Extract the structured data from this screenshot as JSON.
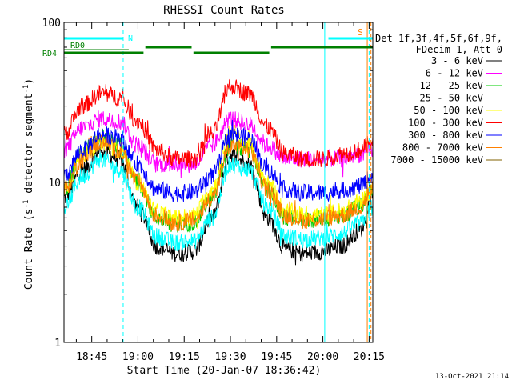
{
  "chart_data": {
    "type": "line",
    "title": "RHESSI Count Rates",
    "xlabel": "Start Time (20-Jan-07 18:36:42)",
    "ylabel": "Count Rate (s",
    "ylabel_sup1": "-1",
    "ylabel_mid": " detector segment",
    "ylabel_sup2": "-1",
    "ylabel_end": ")",
    "y_scale": "log",
    "ylim": [
      1,
      100
    ],
    "xlim_minutes": [
      18.6,
      20.27
    ],
    "y_ticks": [
      {
        "value": 1,
        "label": "1"
      },
      {
        "value": 10,
        "label": "10"
      },
      {
        "value": 100,
        "label": "100"
      }
    ],
    "x_ticks": [
      {
        "value": 18.75,
        "label": "18:45"
      },
      {
        "value": 19.0,
        "label": "19:00"
      },
      {
        "value": 19.25,
        "label": "19:15"
      },
      {
        "value": 19.5,
        "label": "19:30"
      },
      {
        "value": 19.75,
        "label": "19:45"
      },
      {
        "value": 20.0,
        "label": "20:00"
      },
      {
        "value": 20.25,
        "label": "20:15"
      }
    ],
    "legend_header": [
      "Det 1f,3f,4f,5f,6f,9f,",
      "FDecim 1, Att 0"
    ],
    "series": [
      {
        "name": "3 - 6 keV",
        "color": "#000000",
        "x": [
          18.6,
          18.7,
          18.8,
          18.9,
          19.0,
          19.1,
          19.2,
          19.3,
          19.4,
          19.5,
          19.6,
          19.7,
          19.8,
          19.9,
          20.0,
          20.1,
          20.2,
          20.27
        ],
        "values": [
          8,
          12,
          16,
          14,
          7,
          4,
          3.6,
          3.7,
          6,
          15,
          13,
          6,
          3.8,
          3.6,
          3.7,
          4,
          5,
          8
        ]
      },
      {
        "name": "6 - 12 keV",
        "color": "#ff00ff",
        "x": [
          18.6,
          18.7,
          18.8,
          18.9,
          19.0,
          19.1,
          19.2,
          19.3,
          19.4,
          19.5,
          19.6,
          19.7,
          19.8,
          19.9,
          20.0,
          20.1,
          20.2,
          20.27
        ],
        "values": [
          16,
          22,
          25,
          24,
          17,
          13,
          13,
          13,
          17,
          25,
          23,
          17,
          14,
          14,
          14,
          14,
          15,
          16
        ]
      },
      {
        "name": "12 - 25 keV",
        "color": "#00cc00",
        "x": [
          18.6,
          18.7,
          18.8,
          18.9,
          19.0,
          19.1,
          19.2,
          19.3,
          19.4,
          19.5,
          19.6,
          19.7,
          19.8,
          19.9,
          20.0,
          20.1,
          20.2,
          20.27
        ],
        "values": [
          9,
          15,
          19,
          17,
          10,
          6,
          5.5,
          5.6,
          8,
          17,
          16,
          9,
          6,
          5.8,
          5.9,
          6.2,
          7,
          9
        ]
      },
      {
        "name": "25 - 50 keV",
        "color": "#00ffff",
        "x": [
          18.6,
          18.7,
          18.8,
          18.9,
          19.0,
          19.1,
          19.2,
          19.3,
          19.4,
          19.5,
          19.6,
          19.7,
          19.8,
          19.9,
          20.0,
          20.1,
          20.2,
          20.27
        ],
        "values": [
          7,
          11,
          14,
          12,
          7,
          4.6,
          4.2,
          4.3,
          6,
          13,
          12,
          7,
          4.6,
          4.4,
          4.5,
          4.8,
          5.5,
          7
        ]
      },
      {
        "name": "50 - 100 keV",
        "color": "#ffff00",
        "x": [
          18.6,
          18.7,
          18.8,
          18.9,
          19.0,
          19.1,
          19.2,
          19.3,
          19.4,
          19.5,
          19.6,
          19.7,
          19.8,
          19.9,
          20.0,
          20.1,
          20.2,
          20.27
        ],
        "values": [
          9,
          15,
          18,
          16,
          10,
          6.5,
          6,
          6.2,
          9,
          21,
          17,
          10,
          6.6,
          6.3,
          6.3,
          6.6,
          7.5,
          9
        ]
      },
      {
        "name": "100 - 300 keV",
        "color": "#ff0000",
        "x": [
          18.6,
          18.7,
          18.8,
          18.9,
          19.0,
          19.1,
          19.2,
          19.3,
          19.4,
          19.5,
          19.6,
          19.7,
          19.8,
          19.9,
          20.0,
          20.1,
          20.2,
          20.27
        ],
        "values": [
          20,
          30,
          36,
          34,
          24,
          16,
          14,
          14,
          20,
          40,
          36,
          22,
          15,
          14,
          14,
          15,
          16,
          18
        ]
      },
      {
        "name": "300 - 800 keV",
        "color": "#0000ff",
        "x": [
          18.6,
          18.7,
          18.8,
          18.9,
          19.0,
          19.1,
          19.2,
          19.3,
          19.4,
          19.5,
          19.6,
          19.7,
          19.8,
          19.9,
          20.0,
          20.1,
          20.2,
          20.27
        ],
        "values": [
          11,
          16,
          20,
          19,
          13,
          9,
          8.5,
          8.7,
          11,
          20,
          19,
          12,
          9,
          8.6,
          8.6,
          8.9,
          9.5,
          11
        ]
      },
      {
        "name": "800 - 7000 keV",
        "color": "#ff8000",
        "x": [
          18.6,
          18.7,
          18.8,
          18.9,
          19.0,
          19.1,
          19.2,
          19.3,
          19.4,
          19.5,
          19.6,
          19.7,
          19.8,
          19.9,
          20.0,
          20.1,
          20.2,
          20.27
        ],
        "values": [
          9,
          14,
          18,
          16,
          10,
          6.2,
          5.6,
          5.8,
          8,
          17,
          16,
          9,
          6.2,
          5.8,
          5.9,
          6.2,
          7,
          9
        ]
      },
      {
        "name": "7000 - 15000 keV",
        "color": "#806000",
        "x": [],
        "values": []
      }
    ],
    "annotations": {
      "rd0_label": "RD0",
      "rd4_label": "RD4",
      "n_label": "N",
      "s_label": "S",
      "rd0_segments": [
        [
          18.6,
          18.95
        ]
      ],
      "rd4_segments": [
        [
          18.6,
          19.03
        ],
        [
          19.04,
          19.29
        ],
        [
          19.3,
          19.71
        ],
        [
          19.72,
          20.27
        ]
      ],
      "cyan_top_segments": [
        [
          18.6,
          18.92
        ],
        [
          20.03,
          20.27
        ]
      ],
      "vertical_solid_cyan": [
        18.6,
        20.01
      ],
      "vertical_dashed_cyan": [
        18.92,
        20.25
      ],
      "vertical_orange": [
        20.24,
        20.26
      ]
    },
    "timestamp": "13-Oct-2021 21:14"
  },
  "colors": {
    "background": "#ffffff",
    "axis": "#000000",
    "rd_bar": "#008000",
    "cyan_marker": "#00ffff",
    "orange_marker": "#ff8000"
  }
}
